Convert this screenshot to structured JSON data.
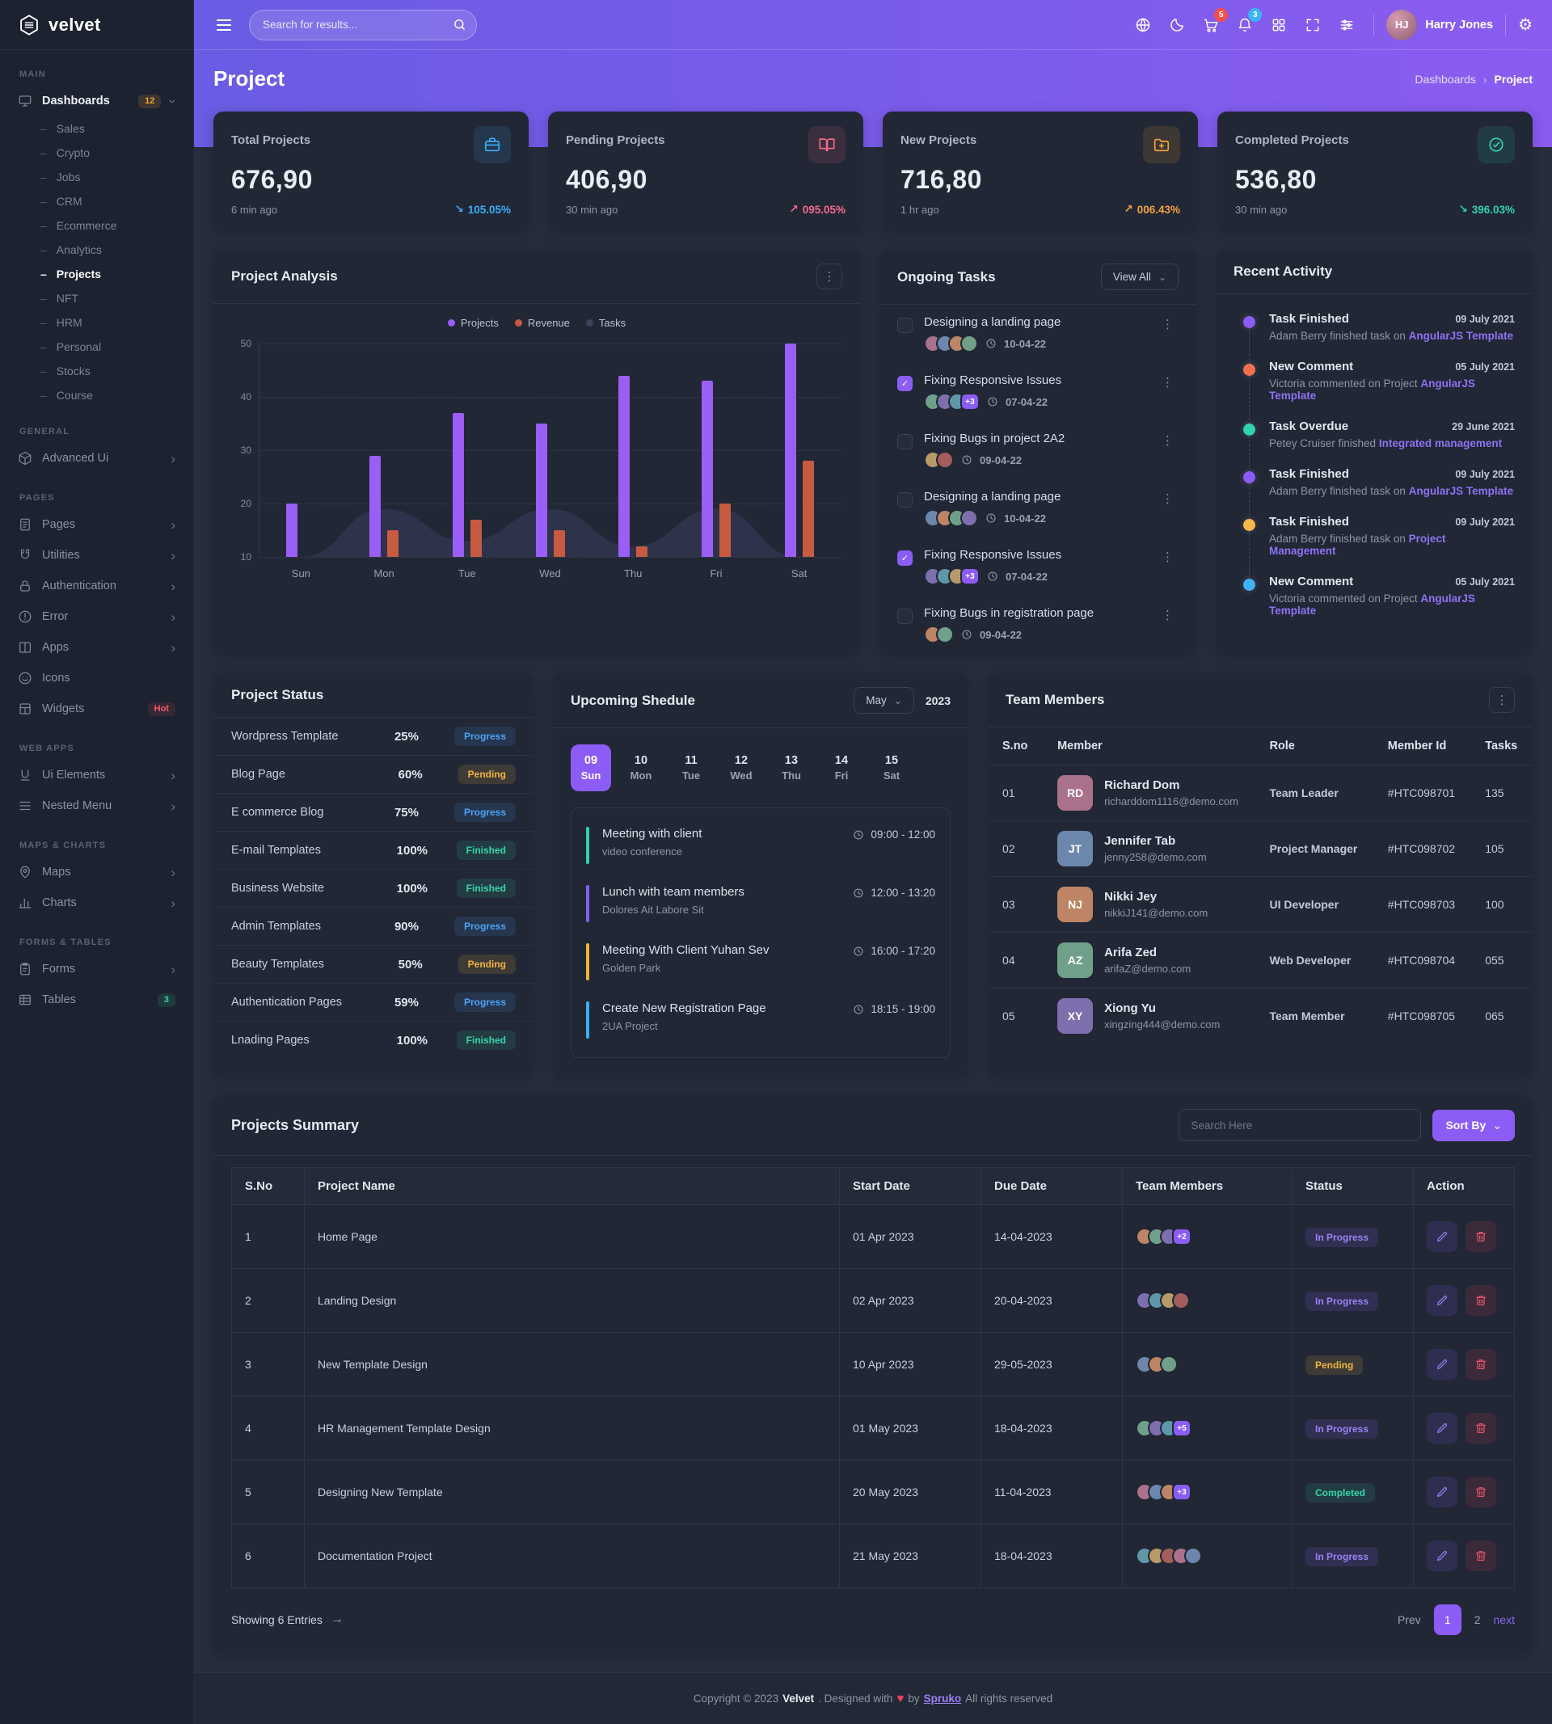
{
  "brand": {
    "name": "velvet"
  },
  "topbar": {
    "search_placeholder": "Search for results...",
    "cart_badge": "5",
    "bell_badge": "3",
    "user": {
      "name": "Harry Jones",
      "initials": "HJ"
    }
  },
  "page": {
    "title": "Project",
    "breadcrumb": {
      "parent": "Dashboards",
      "current": "Project"
    }
  },
  "sidebar": {
    "main_label": "MAIN",
    "dashboards": {
      "label": "Dashboards",
      "badge": "12"
    },
    "dash_items": [
      {
        "label": "Sales"
      },
      {
        "label": "Crypto"
      },
      {
        "label": "Jobs"
      },
      {
        "label": "CRM"
      },
      {
        "label": "Ecommerce"
      },
      {
        "label": "Analytics"
      },
      {
        "label": "Projects"
      },
      {
        "label": "NFT"
      },
      {
        "label": "HRM"
      },
      {
        "label": "Personal"
      },
      {
        "label": "Stocks"
      },
      {
        "label": "Course"
      }
    ],
    "general_label": "GENERAL",
    "advanced_ui": {
      "label": "Advanced Ui"
    },
    "pages_label": "PAGES",
    "pages": {
      "label": "Pages"
    },
    "utilities": {
      "label": "Utilities"
    },
    "authentication": {
      "label": "Authentication"
    },
    "error": {
      "label": "Error"
    },
    "apps": {
      "label": "Apps"
    },
    "icons": {
      "label": "Icons"
    },
    "widgets": {
      "label": "Widgets",
      "badge": "Hot"
    },
    "webapps_label": "WEB APPS",
    "ui_elements": {
      "label": "Ui Elements"
    },
    "nested_menu": {
      "label": "Nested Menu"
    },
    "maps_label": "MAPS & CHARTS",
    "maps": {
      "label": "Maps"
    },
    "charts": {
      "label": "Charts"
    },
    "forms_label": "FORMS & TABLES",
    "forms": {
      "label": "Forms"
    },
    "tables": {
      "label": "Tables",
      "badge": "3"
    }
  },
  "stats": [
    {
      "title": "Total Projects",
      "value": "676,90",
      "time": "6 min ago",
      "arrow": "↘",
      "delta": "105.05%",
      "accent": "#3baefa",
      "icon": "briefcase-icon"
    },
    {
      "title": "Pending Projects",
      "value": "406,90",
      "time": "30 min ago",
      "arrow": "↗",
      "delta": "095.05%",
      "accent": "#f4698b",
      "icon": "book-open-icon"
    },
    {
      "title": "New Projects",
      "value": "716,80",
      "time": "1 hr ago",
      "arrow": "↗",
      "delta": "006.43%",
      "accent": "#f2a33c",
      "icon": "folder-plus-icon"
    },
    {
      "title": "Completed Projects",
      "value": "536,80",
      "time": "30 min ago",
      "arrow": "↘",
      "delta": "396.03%",
      "accent": "#2fd3ac",
      "icon": "check-circle-icon"
    }
  ],
  "chart_data": {
    "type": "bar",
    "title": "Project Analysis",
    "categories": [
      "Sun",
      "Mon",
      "Tue",
      "Wed",
      "Thu",
      "Fri",
      "Sat"
    ],
    "series": [
      {
        "name": "Projects",
        "type": "bar",
        "color": "#9b5ef6",
        "values": [
          20,
          29,
          37,
          35,
          44,
          43,
          50
        ]
      },
      {
        "name": "Revenue",
        "type": "bar",
        "color": "#c75b41",
        "values": [
          10,
          15,
          17,
          15,
          12,
          20,
          28
        ]
      },
      {
        "name": "Tasks",
        "type": "area",
        "color": "#3c4157",
        "fill": "rgba(98,90,153,0.22)",
        "values": [
          10,
          19,
          13,
          19,
          12,
          19,
          10
        ]
      }
    ],
    "ylim": [
      10,
      50
    ],
    "yticks": [
      50,
      40,
      30,
      20,
      10
    ],
    "grid": "dashed-horizontal",
    "legend_position": "top-center"
  },
  "ongoing": {
    "title": "Ongoing Tasks",
    "view_all": "View All",
    "tasks": [
      {
        "title": "Designing a landing page",
        "date": "10-04-22",
        "checked": false,
        "avatars": 4,
        "extra": ""
      },
      {
        "title": "Fixing Responsive Issues",
        "date": "07-04-22",
        "checked": true,
        "avatars": 3,
        "extra": "+3"
      },
      {
        "title": "Fixing Bugs in project 2A2",
        "date": "09-04-22",
        "checked": false,
        "avatars": 2,
        "extra": ""
      },
      {
        "title": "Designing a landing page",
        "date": "10-04-22",
        "checked": false,
        "avatars": 4,
        "extra": ""
      },
      {
        "title": "Fixing Responsive Issues",
        "date": "07-04-22",
        "checked": true,
        "avatars": 3,
        "extra": "+3"
      },
      {
        "title": "Fixing Bugs in registration page",
        "date": "09-04-22",
        "checked": false,
        "avatars": 2,
        "extra": ""
      }
    ]
  },
  "activity": {
    "title": "Recent Activity",
    "items": [
      {
        "title": "Task Finished",
        "date": "09 July 2021",
        "text": "Adam Berry finished task on",
        "link": "AngularJS Template",
        "dot": "#8b5cf6"
      },
      {
        "title": "New Comment",
        "date": "05 July 2021",
        "text": "Victoria commented on Project",
        "link": "AngularJS Template",
        "dot": "#f2704f"
      },
      {
        "title": "Task Overdue",
        "date": "29 June 2021",
        "text": "Petey Cruiser finished",
        "link": "Integrated management",
        "dot": "#2fd3ac"
      },
      {
        "title": "Task Finished",
        "date": "09 July 2021",
        "text": "Adam Berry finished task on",
        "link": "AngularJS Template",
        "dot": "#8b5cf6"
      },
      {
        "title": "Task Finished",
        "date": "09 July 2021",
        "text": "Adam Berry finished task on",
        "link": "Project Management",
        "dot": "#f5b849"
      },
      {
        "title": "New Comment",
        "date": "05 July 2021",
        "text": "Victoria commented on Project",
        "link": "AngularJS Template",
        "dot": "#41b1f9"
      }
    ]
  },
  "status": {
    "title": "Project Status",
    "rows": [
      {
        "name": "Wordpress Template",
        "percent": "25%",
        "badge": "Progress",
        "type": "progress"
      },
      {
        "name": "Blog Page",
        "percent": "60%",
        "badge": "Pending",
        "type": "pending"
      },
      {
        "name": "E commerce Blog",
        "percent": "75%",
        "badge": "Progress",
        "type": "progress"
      },
      {
        "name": "E-mail Templates",
        "percent": "100%",
        "badge": "Finished",
        "type": "finished"
      },
      {
        "name": "Business Website",
        "percent": "100%",
        "badge": "Finished",
        "type": "finished"
      },
      {
        "name": "Admin Templates",
        "percent": "90%",
        "badge": "Progress",
        "type": "progress"
      },
      {
        "name": "Beauty Templates",
        "percent": "50%",
        "badge": "Pending",
        "type": "pending"
      },
      {
        "name": "Authentication Pages",
        "percent": "59%",
        "badge": "Progress",
        "type": "progress"
      },
      {
        "name": "Lnading Pages",
        "percent": "100%",
        "badge": "Finished",
        "type": "finished"
      }
    ]
  },
  "schedule": {
    "title": "Upcoming Shedule",
    "month": "May",
    "year": "2023",
    "days": [
      {
        "num": "09",
        "day": "Sun",
        "active": true
      },
      {
        "num": "10",
        "day": "Mon"
      },
      {
        "num": "11",
        "day": "Tue"
      },
      {
        "num": "12",
        "day": "Wed"
      },
      {
        "num": "13",
        "day": "Thu"
      },
      {
        "num": "14",
        "day": "Fri"
      },
      {
        "num": "15",
        "day": "Sat"
      }
    ],
    "events": [
      {
        "title": "Meeting with client",
        "subtitle": "video conference",
        "time": "09:00 - 12:00",
        "color": "#2fd3ac"
      },
      {
        "title": "Lunch with team members",
        "subtitle": "Dolores Ait Labore Sit",
        "time": "12:00 - 13:20",
        "color": "#8b5cf6"
      },
      {
        "title": "Meeting With Client Yuhan Sev",
        "subtitle": "Golden Park",
        "time": "16:00 - 17:20",
        "color": "#f5b13d"
      },
      {
        "title": "Create New Registration Page",
        "subtitle": "2UA Project",
        "time": "18:15 - 19:00",
        "color": "#3baefa"
      }
    ]
  },
  "team": {
    "title": "Team Members",
    "headers": {
      "no": "S.no",
      "member": "Member",
      "role": "Role",
      "id": "Member Id",
      "tasks": "Tasks"
    },
    "rows": [
      {
        "no": "01",
        "name": "Richard Dom",
        "initials": "RD",
        "email": "richarddom1116@demo.com",
        "role": "Team Leader",
        "id": "#HTC098701",
        "tasks": "135"
      },
      {
        "no": "02",
        "name": "Jennifer Tab",
        "initials": "JT",
        "email": "jenny258@demo.com",
        "role": "Project Manager",
        "id": "#HTC098702",
        "tasks": "105"
      },
      {
        "no": "03",
        "name": "Nikki Jey",
        "initials": "NJ",
        "email": "nikkiJ141@demo.com",
        "role": "UI Developer",
        "id": "#HTC098703",
        "tasks": "100"
      },
      {
        "no": "04",
        "name": "Arifa Zed",
        "initials": "AZ",
        "email": "arifaZ@demo.com",
        "role": "Web Developer",
        "id": "#HTC098704",
        "tasks": "055"
      },
      {
        "no": "05",
        "name": "Xiong Yu",
        "initials": "XY",
        "email": "xingzing444@demo.com",
        "role": "Team Member",
        "id": "#HTC098705",
        "tasks": "065"
      }
    ]
  },
  "summary": {
    "title": "Projects Summary",
    "search_placeholder": "Search Here",
    "sort_label": "Sort By",
    "headers": {
      "no": "S.No",
      "name": "Project Name",
      "start": "Start Date",
      "due": "Due Date",
      "team": "Team Members",
      "status": "Status",
      "action": "Action"
    },
    "rows": [
      {
        "no": "1",
        "name": "Home Page",
        "start": "01 Apr 2023",
        "due": "14-04-2023",
        "avatars": 3,
        "extra": "+2",
        "status": "In Progress",
        "type": "progress"
      },
      {
        "no": "2",
        "name": "Landing Design",
        "start": "02 Apr 2023",
        "due": "20-04-2023",
        "avatars": 4,
        "extra": "",
        "status": "In Progress",
        "type": "progress"
      },
      {
        "no": "3",
        "name": "New Template Design",
        "start": "10 Apr 2023",
        "due": "29-05-2023",
        "avatars": 3,
        "extra": "",
        "status": "Pending",
        "type": "pending"
      },
      {
        "no": "4",
        "name": "HR Management Template Design",
        "start": "01 May 2023",
        "due": "18-04-2023",
        "avatars": 3,
        "extra": "+5",
        "status": "In Progress",
        "type": "progress"
      },
      {
        "no": "5",
        "name": "Designing New Template",
        "start": "20 May 2023",
        "due": "11-04-2023",
        "avatars": 3,
        "extra": "+3",
        "status": "Completed",
        "type": "completed"
      },
      {
        "no": "6",
        "name": "Documentation Project",
        "start": "21 May 2023",
        "due": "18-04-2023",
        "avatars": 5,
        "extra": "",
        "status": "In Progress",
        "type": "progress"
      }
    ],
    "showing": "Showing 6 Entries",
    "pagination": {
      "prev": "Prev",
      "page_1": "1",
      "page_2": "2",
      "next": "next"
    }
  },
  "footer": {
    "copyright": "Copyright © 2023",
    "brand": "Velvet",
    "designed": ". Designed with",
    "by": "by",
    "link": "Spruko",
    "rights": "All rights reserved"
  }
}
